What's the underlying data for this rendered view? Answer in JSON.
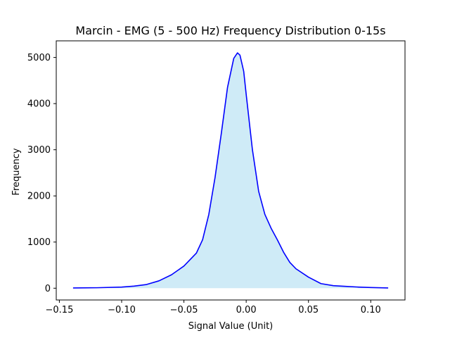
{
  "chart_data": {
    "type": "area",
    "title": "Marcin - EMG (5 - 500 Hz) Frequency Distribution 0-15s",
    "xlabel": "Signal Value (Unit)",
    "ylabel": "Frequency",
    "xlim": [
      -0.1525,
      0.1275
    ],
    "ylim": [
      -255,
      5360
    ],
    "xticks": [
      -0.15,
      -0.1,
      -0.05,
      0.0,
      0.05,
      0.1
    ],
    "xtick_labels": [
      "−0.15",
      "−0.10",
      "−0.05",
      "0.00",
      "0.05",
      "0.10"
    ],
    "yticks": [
      0,
      1000,
      2000,
      3000,
      4000,
      5000
    ],
    "ytick_labels": [
      "0",
      "1000",
      "2000",
      "3000",
      "4000",
      "5000"
    ],
    "grid": false,
    "line_color": "#0000ff",
    "fill_color": "#87ceeb",
    "series": [
      {
        "x": [
          -0.139,
          -0.12,
          -0.1,
          -0.09,
          -0.08,
          -0.07,
          -0.06,
          -0.05,
          -0.04,
          -0.035,
          -0.03,
          -0.025,
          -0.02,
          -0.015,
          -0.01,
          -0.007,
          -0.005,
          -0.002,
          0.0,
          0.005,
          0.01,
          0.015,
          0.02,
          0.025,
          0.03,
          0.035,
          0.04,
          0.05,
          0.06,
          0.07,
          0.08,
          0.09,
          0.1,
          0.114
        ],
        "y": [
          5,
          10,
          25,
          45,
          80,
          160,
          290,
          480,
          760,
          1050,
          1600,
          2400,
          3350,
          4350,
          4980,
          5100,
          5050,
          4700,
          4200,
          3000,
          2100,
          1600,
          1300,
          1050,
          780,
          560,
          420,
          240,
          100,
          55,
          40,
          25,
          15,
          5
        ]
      }
    ]
  }
}
